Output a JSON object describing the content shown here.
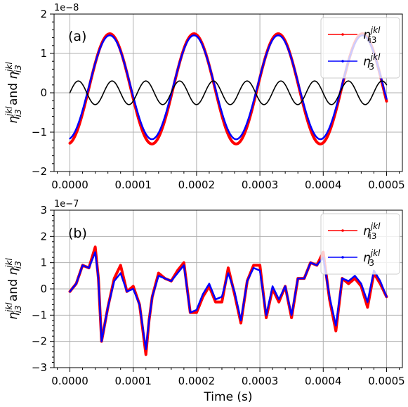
{
  "figure": {
    "xlabel": "Time (s)",
    "ylabel": "η₁₃^{jkl} and η₁₃^{jkl}",
    "ylabel_parts": {
      "prefix": "η",
      "sub": "i3",
      "sup": "jkl",
      "mid": " and ",
      "suffix": "η"
    }
  },
  "chart_data": [
    {
      "type": "line",
      "panel_label": "(a)",
      "offset_text": "1e−8",
      "x_ticks": [
        "0.0000",
        "0.0001",
        "0.0002",
        "0.0003",
        "0.0004",
        "0.0005"
      ],
      "y_ticks": [
        "−2",
        "−1",
        "0",
        "1",
        "2"
      ],
      "xlim": [
        -2.5e-05,
        0.000525
      ],
      "ylim": [
        -2,
        2
      ],
      "y_scale_factor": 1e-08,
      "grid": true,
      "legend_placement": "top-right",
      "series": [
        {
          "name": "η_i3^jkl",
          "legend_sub": "i3",
          "color": "#ff0000",
          "kind": "sinusoid",
          "amplitude": 1.4,
          "offset": 0.1,
          "period": 0.000133,
          "phase_peak": 6.3e-05,
          "width": 4
        },
        {
          "name": "η_3^jkl",
          "legend_sub": "3",
          "color": "#0000ff",
          "kind": "sinusoid",
          "amplitude": 1.32,
          "offset": 0.14,
          "period": 0.000133,
          "phase_peak": 6.3e-05,
          "width": 2.5
        },
        {
          "color": "#000000",
          "kind": "sinusoid",
          "amplitude": 0.3,
          "offset": 0.0,
          "period": 5.33e-05,
          "phase_peak": 1.33e-05,
          "width": 1.6
        }
      ]
    },
    {
      "type": "line",
      "panel_label": "(b)",
      "offset_text": "1e−7",
      "x_ticks": [
        "0.0000",
        "0.0001",
        "0.0002",
        "0.0003",
        "0.0004",
        "0.0005"
      ],
      "y_ticks": [
        "−3",
        "−2",
        "−1",
        "0",
        "1",
        "2",
        "3"
      ],
      "xlim": [
        -2.5e-05,
        0.000525
      ],
      "ylim": [
        -3,
        3
      ],
      "y_scale_factor": 1e-07,
      "grid": true,
      "legend_placement": "top-right",
      "series": [
        {
          "name": "η_i3^jkl",
          "legend_sub": "i3",
          "color": "#ff0000",
          "kind": "points",
          "width": 4,
          "x": [
            0.0,
            1e-05,
            2e-05,
            3e-05,
            4e-05,
            4.5e-05,
            5e-05,
            6e-05,
            7e-05,
            8e-05,
            9e-05,
            0.0001,
            0.00011,
            0.00012,
            0.000125,
            0.00013,
            0.00014,
            0.00015,
            0.00016,
            0.00017,
            0.00018,
            0.00019,
            0.0002,
            0.00021,
            0.00022,
            0.00023,
            0.00024,
            0.00025,
            0.00026,
            0.00027,
            0.00028,
            0.00029,
            0.0003,
            0.00031,
            0.00032,
            0.00033,
            0.00034,
            0.00035,
            0.00036,
            0.00037,
            0.00038,
            0.00039,
            0.0004,
            0.00041,
            0.00042,
            0.00043,
            0.00044,
            0.00045,
            0.00046,
            0.00047,
            0.00048,
            0.00049,
            0.0005
          ],
          "y": [
            -0.1,
            0.2,
            0.9,
            0.8,
            1.6,
            0.4,
            -2.0,
            -0.7,
            0.4,
            0.9,
            -0.1,
            0.1,
            -0.6,
            -2.5,
            -1.2,
            -0.3,
            0.6,
            0.4,
            0.3,
            0.7,
            1.0,
            -0.9,
            -0.9,
            -0.3,
            0.1,
            -0.5,
            -0.5,
            0.8,
            -0.2,
            -1.3,
            0.3,
            0.9,
            0.9,
            -1.1,
            0.0,
            -0.5,
            0.1,
            -1.1,
            0.4,
            0.4,
            1.0,
            0.9,
            1.4,
            -0.4,
            -1.6,
            0.4,
            0.2,
            0.4,
            0.1,
            -0.7,
            0.6,
            0.2,
            -0.3
          ]
        },
        {
          "name": "η_3^jkl",
          "legend_sub": "3",
          "color": "#0000ff",
          "kind": "points",
          "width": 2.5,
          "x": [
            0.0,
            1e-05,
            2e-05,
            3e-05,
            4e-05,
            4.5e-05,
            5e-05,
            6e-05,
            7e-05,
            8e-05,
            9e-05,
            0.0001,
            0.00011,
            0.00012,
            0.000125,
            0.00013,
            0.00014,
            0.00015,
            0.00016,
            0.00017,
            0.00018,
            0.00019,
            0.0002,
            0.00021,
            0.00022,
            0.00023,
            0.00024,
            0.00025,
            0.00026,
            0.00027,
            0.00028,
            0.00029,
            0.0003,
            0.00031,
            0.00032,
            0.00033,
            0.00034,
            0.00035,
            0.00036,
            0.00037,
            0.00038,
            0.00039,
            0.0004,
            0.00041,
            0.00042,
            0.00043,
            0.00044,
            0.00045,
            0.00046,
            0.00047,
            0.00048,
            0.00049,
            0.0005
          ],
          "y": [
            -0.1,
            0.2,
            0.9,
            0.8,
            1.4,
            0.4,
            -2.0,
            -0.7,
            0.3,
            0.6,
            -0.1,
            0.0,
            -0.6,
            -2.3,
            -1.2,
            -0.3,
            0.5,
            0.4,
            0.3,
            0.6,
            0.9,
            -0.9,
            -0.8,
            -0.2,
            0.2,
            -0.4,
            -0.3,
            0.6,
            -0.1,
            -1.2,
            0.3,
            0.8,
            0.7,
            -1.0,
            0.1,
            -0.4,
            0.1,
            -1.0,
            0.4,
            0.4,
            1.0,
            0.9,
            1.2,
            -0.3,
            -1.4,
            0.4,
            0.3,
            0.5,
            0.2,
            -0.5,
            0.7,
            0.3,
            -0.3
          ]
        }
      ]
    }
  ]
}
